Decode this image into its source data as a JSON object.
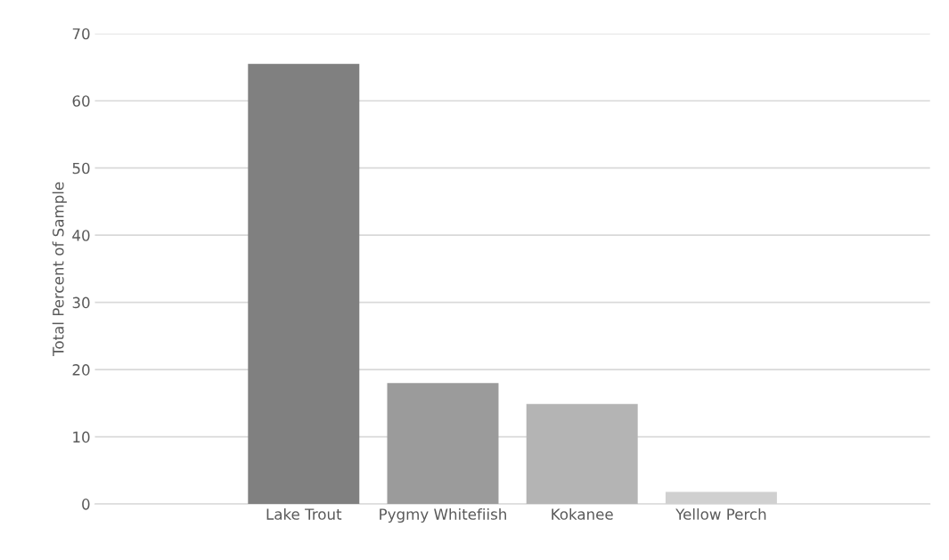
{
  "chart_data": {
    "type": "bar",
    "ylabel": "Total Percent of Sample",
    "categories": [
      null,
      "Lake Trout",
      "Pygmy Whitefiish",
      "Kokanee",
      "Yellow Perch",
      null
    ],
    "values": [
      null,
      65.5,
      18.0,
      14.9,
      1.8,
      null
    ],
    "colors": [
      "#808080",
      "#808080",
      "#9b9b9b",
      "#b4b4b4",
      "#d0d0d0",
      "#d0d0d0"
    ],
    "ylim": [
      0,
      70
    ],
    "yticks": [
      0,
      10,
      20,
      30,
      40,
      50,
      60,
      70
    ],
    "grid": "y",
    "legend": false
  }
}
